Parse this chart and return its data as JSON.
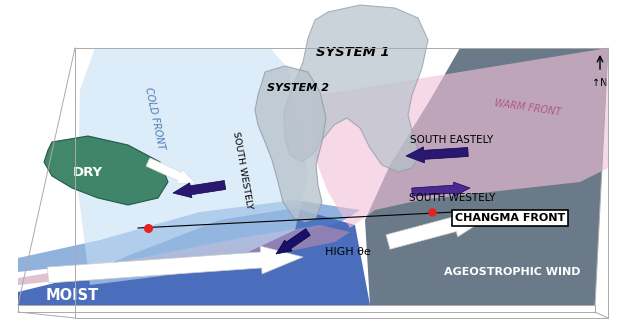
{
  "bg_color": "#ffffff",
  "elements": {
    "cold_front_label": "COLD FRONT",
    "warm_front_label": "WARM FRONT",
    "system1_label": "SYSTEM 1",
    "system2_label": "SYSTEM 2",
    "dry_label": "DRY",
    "moist_label": "MOIST",
    "high_label": "HIGH θe",
    "south_eastely_label": "SOUTH EASTELY",
    "south_westely1_label": "SOUTH WESTELY",
    "south_westely2_label": "SOUTH WESTELY",
    "changma_label": "CHANGMA FRONT",
    "ageostrophic_label": "AGEOSTROPHIC WIND",
    "n_label": "↑N"
  },
  "colors": {
    "cold_front_blue": "#c5e0f5",
    "warm_front_pink": "#f2c0d8",
    "moist_dark_blue": "#2a55b0",
    "moist_med_blue": "#4a80c8",
    "moist_light_blue": "#88b8e8",
    "dry_green": "#2d7a5a",
    "system_gray": "#b8c2cc",
    "system_gray_edge": "#909aaa",
    "dark_slate": "#566878",
    "purple_dark": "#2a1870",
    "purple_med": "#4a2a90",
    "mauve": "#c890b0",
    "red_dot": "#e82020",
    "blue_dot": "#2040cc",
    "white": "#ffffff",
    "light_gray": "#d8dfe8",
    "box_outline": "#aaaaaa",
    "front_line": "#000000"
  }
}
